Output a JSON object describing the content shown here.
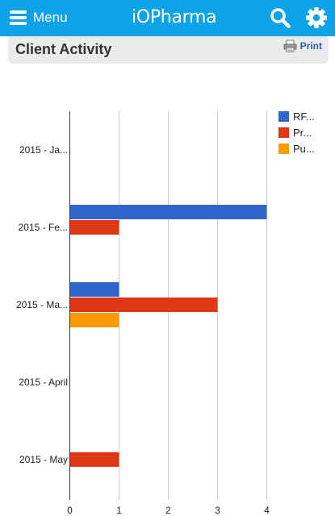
{
  "header": {
    "menu_label": "Menu",
    "logo_prefix": "iO",
    "logo_suffix": "Pharma",
    "bar_color": "#0da3e6"
  },
  "page": {
    "title": "Client Activity",
    "print_label": "Print"
  },
  "chart_data": {
    "type": "bar",
    "orientation": "horizontal",
    "categories": [
      "2015 - Ja...",
      "2015 - Fe...",
      "2015 - Ma...",
      "2015 - April",
      "2015 - May"
    ],
    "series": [
      {
        "name": "RF...",
        "color": "#3366cc",
        "values": [
          0,
          4,
          1,
          0,
          0
        ]
      },
      {
        "name": "Pr...",
        "color": "#dc3912",
        "values": [
          0,
          1,
          3,
          0,
          1
        ]
      },
      {
        "name": "Pu...",
        "color": "#ff9900",
        "values": [
          0,
          0,
          1,
          0,
          0
        ]
      }
    ],
    "xlim": [
      0,
      4
    ],
    "xticks": [
      "0",
      "1",
      "2",
      "3",
      "4"
    ],
    "grid": true,
    "legend": "top-right"
  }
}
